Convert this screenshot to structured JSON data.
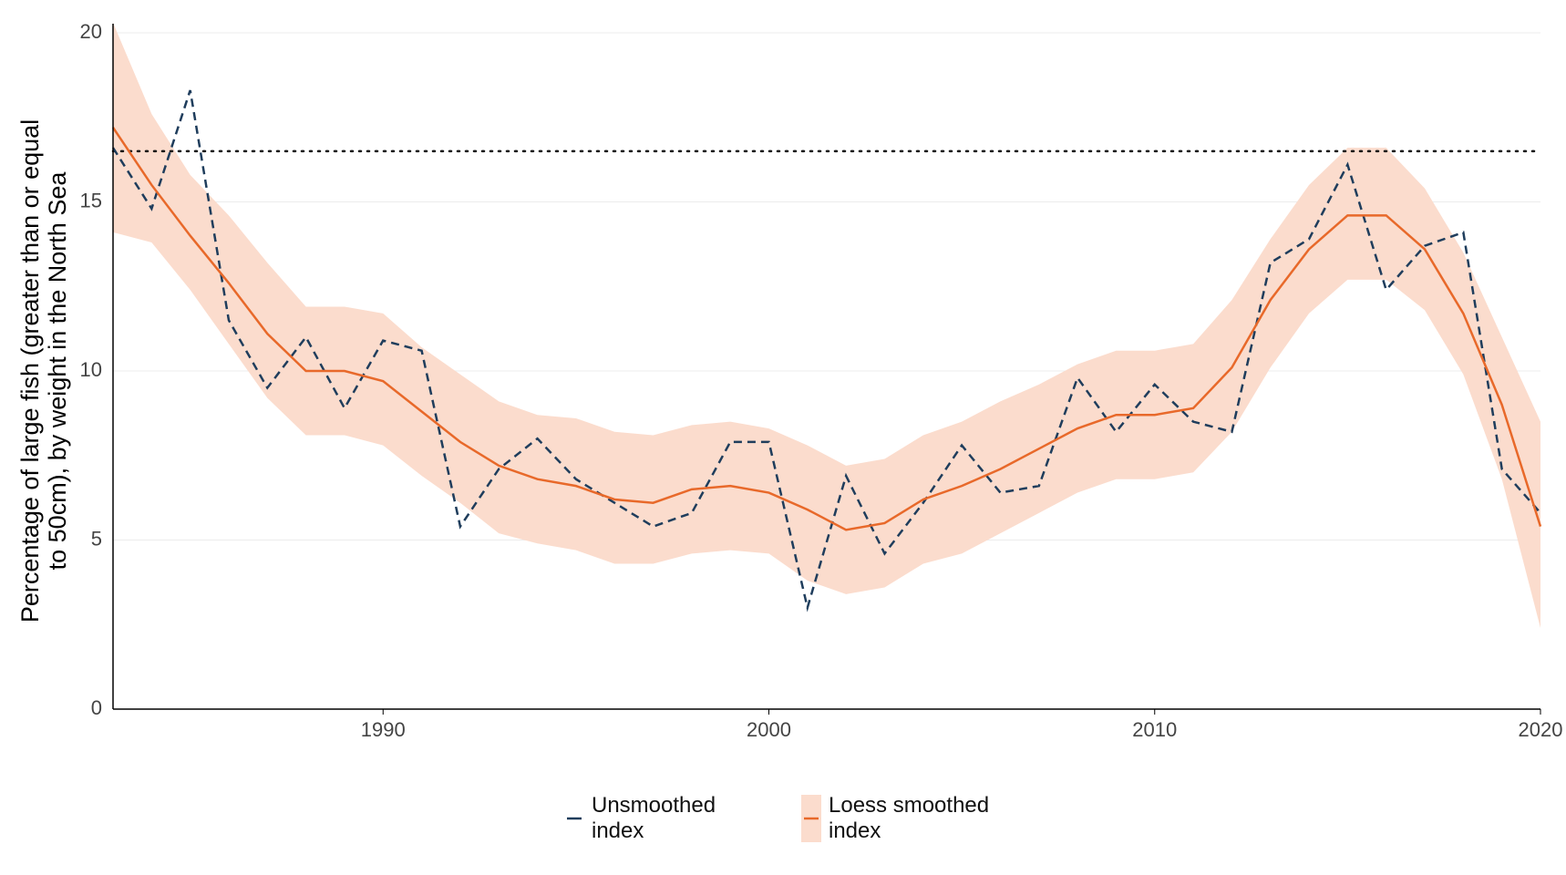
{
  "chart_data": {
    "type": "line",
    "ylabel": [
      "Percentage of large fish (greater than or equal",
      "to 50cm), by weight in the North Sea"
    ],
    "x": [
      1983,
      1984,
      1985,
      1986,
      1987,
      1988,
      1989,
      1990,
      1991,
      1992,
      1993,
      1994,
      1995,
      1996,
      1997,
      1998,
      1999,
      2000,
      2001,
      2002,
      2003,
      2004,
      2005,
      2006,
      2007,
      2008,
      2009,
      2010,
      2011,
      2012,
      2013,
      2014,
      2015,
      2016,
      2017,
      2018,
      2019,
      2020
    ],
    "series": [
      {
        "name": "Unsmoothed index",
        "color": "#1f3d5c",
        "dashed": true,
        "values": [
          16.6,
          14.8,
          18.3,
          11.5,
          9.5,
          11.0,
          8.9,
          10.9,
          10.6,
          5.4,
          7.1,
          8.0,
          6.8,
          6.1,
          5.4,
          5.8,
          7.9,
          7.9,
          3.0,
          6.9,
          4.6,
          6.1,
          7.8,
          6.4,
          6.6,
          9.8,
          8.2,
          9.6,
          8.5,
          8.2,
          13.2,
          13.9,
          16.1,
          12.4,
          13.7,
          14.1,
          7.1,
          5.8
        ]
      },
      {
        "name": "Loess smoothed index",
        "color": "#e8692a",
        "band_color": "#fbdccd",
        "values": [
          17.2,
          15.5,
          14.0,
          12.6,
          11.1,
          10.0,
          10.0,
          9.7,
          8.8,
          7.9,
          7.2,
          6.8,
          6.6,
          6.2,
          6.1,
          6.5,
          6.6,
          6.4,
          5.9,
          5.3,
          5.5,
          6.2,
          6.6,
          7.1,
          7.7,
          8.3,
          8.7,
          8.7,
          8.9,
          10.1,
          12.1,
          13.6,
          14.6,
          14.6,
          13.6,
          11.7,
          9.0,
          5.4
        ],
        "upper": [
          20.3,
          17.6,
          15.8,
          14.6,
          13.2,
          11.9,
          11.9,
          11.7,
          10.7,
          9.9,
          9.1,
          8.7,
          8.6,
          8.2,
          8.1,
          8.4,
          8.5,
          8.3,
          7.8,
          7.2,
          7.4,
          8.1,
          8.5,
          9.1,
          9.6,
          10.2,
          10.6,
          10.6,
          10.8,
          12.1,
          13.9,
          15.5,
          16.6,
          16.6,
          15.4,
          13.5,
          11.0,
          8.5
        ],
        "lower": [
          14.1,
          13.8,
          12.4,
          10.8,
          9.2,
          8.1,
          8.1,
          7.8,
          6.9,
          6.1,
          5.2,
          4.9,
          4.7,
          4.3,
          4.3,
          4.6,
          4.7,
          4.6,
          3.8,
          3.4,
          3.6,
          4.3,
          4.6,
          5.2,
          5.8,
          6.4,
          6.8,
          6.8,
          7.0,
          8.2,
          10.1,
          11.7,
          12.7,
          12.7,
          11.8,
          9.9,
          6.8,
          2.4
        ]
      }
    ],
    "reference_line": 16.5,
    "xlim": [
      1983,
      2020
    ],
    "xticks": [
      1990,
      2000,
      2010,
      2020
    ],
    "ylim": [
      0,
      20
    ],
    "yticks": [
      0,
      5,
      10,
      15,
      20
    ],
    "grid": true,
    "legend": "bottom"
  }
}
